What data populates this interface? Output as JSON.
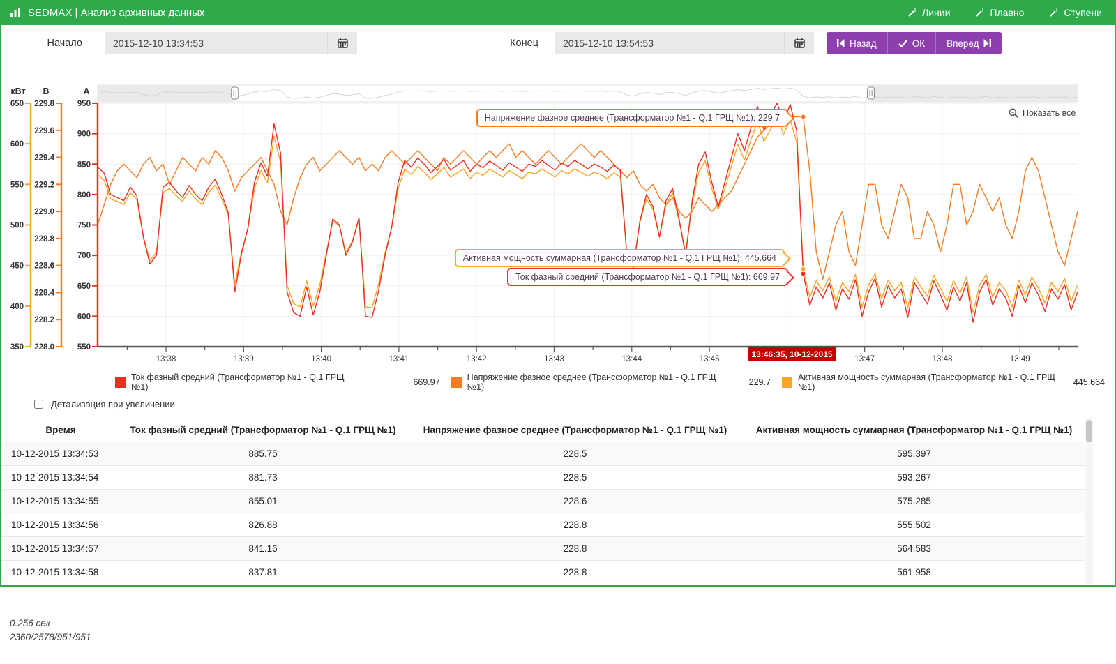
{
  "header": {
    "title": "SEDMAX | Анализ архивных данных",
    "links": [
      {
        "label": "Линии"
      },
      {
        "label": "Плавно"
      },
      {
        "label": "Ступени"
      }
    ]
  },
  "controls": {
    "start_label": "Начало",
    "start_value": "2015-12-10 13:34:53",
    "end_label": "Конец",
    "end_value": "2015-12-10 13:54:53",
    "back": "Назад",
    "ok": "ОК",
    "forward": "Вперед"
  },
  "chart_data": {
    "type": "line",
    "show_all_label": "Показать всё",
    "x_ticks": [
      "13:38",
      "13:39",
      "13:40",
      "13:41",
      "13:42",
      "13:43",
      "13:44",
      "13:45",
      "13:46",
      "13:47",
      "13:48",
      "13:49"
    ],
    "cursor": {
      "label": "13:46:35, 10-12-2015",
      "index": 108
    },
    "axes": [
      {
        "unit": "кВт",
        "color": "#f5a623",
        "min": 350,
        "max": 650,
        "step": 50,
        "decimals": 0
      },
      {
        "unit": "В",
        "color": "#f57b20",
        "min": 228.0,
        "max": 229.8,
        "step": 0.2,
        "decimals": 1
      },
      {
        "unit": "А",
        "color": "#e92f22",
        "min": 550,
        "max": 950,
        "step": 50,
        "decimals": 0
      }
    ],
    "navigator": {
      "handle_fractions": [
        0.14,
        0.789
      ]
    },
    "series": [
      {
        "name": "Ток фазный средний (Трансформатор №1 - Q.1 ГРЩ №1)",
        "axis": "А",
        "color": "#e92f22",
        "cursor_value": 669.97,
        "values": [
          845,
          835,
          800,
          795,
          790,
          812,
          798,
          730,
          686,
          700,
          812,
          820,
          806,
          795,
          815,
          800,
          790,
          812,
          825,
          800,
          770,
          640,
          702,
          745,
          820,
          852,
          830,
          916,
          868,
          640,
          606,
          600,
          648,
          602,
          640,
          700,
          760,
          750,
          700,
          722,
          762,
          600,
          598,
          642,
          700,
          746,
          820,
          856,
          845,
          860,
          850,
          836,
          846,
          858,
          840,
          848,
          856,
          838,
          850,
          844,
          855,
          848,
          840,
          852,
          845,
          838,
          850,
          846,
          856,
          848,
          840,
          852,
          846,
          856,
          850,
          842,
          850,
          845,
          838,
          848,
          840,
          700,
          680,
          756,
          800,
          780,
          730,
          790,
          810,
          760,
          700,
          790,
          850,
          870,
          820,
          780,
          820,
          860,
          900,
          872,
          910,
          945,
          906,
          930,
          950,
          920,
          948,
          905,
          670,
          618,
          648,
          630,
          655,
          610,
          645,
          628,
          660,
          600,
          640,
          662,
          615,
          650,
          630,
          645,
          598,
          655,
          638,
          620,
          658,
          635,
          610,
          648,
          625,
          655,
          590,
          640,
          660,
          618,
          645,
          630,
          600,
          650,
          622,
          655,
          635,
          608,
          645,
          628,
          652,
          610,
          640
        ]
      },
      {
        "name": "Напряжение фазное среднее (Трансформатор №1 - Q.1 ГРЩ №1)",
        "axis": "В",
        "color": "#f57b20",
        "cursor_value": 229.7,
        "values": [
          228.9,
          229.05,
          229.2,
          229.3,
          229.35,
          229.3,
          229.25,
          229.35,
          229.4,
          229.3,
          229.35,
          229.2,
          229.3,
          229.4,
          229.35,
          229.3,
          229.4,
          229.35,
          229.45,
          229.4,
          229.3,
          229.15,
          229.25,
          229.3,
          229.35,
          229.4,
          229.3,
          229.2,
          229.0,
          228.9,
          229.1,
          229.25,
          229.35,
          229.4,
          229.3,
          229.35,
          229.4,
          229.45,
          229.4,
          229.35,
          229.4,
          229.3,
          229.35,
          229.3,
          229.4,
          229.45,
          229.4,
          229.35,
          229.4,
          229.45,
          229.4,
          229.35,
          229.3,
          229.4,
          229.35,
          229.4,
          229.45,
          229.4,
          229.35,
          229.4,
          229.45,
          229.4,
          229.45,
          229.5,
          229.4,
          229.45,
          229.4,
          229.35,
          229.4,
          229.45,
          229.4,
          229.35,
          229.4,
          229.45,
          229.5,
          229.45,
          229.4,
          229.45,
          229.4,
          229.35,
          229.3,
          229.25,
          229.3,
          229.2,
          229.15,
          229.2,
          229.1,
          229.05,
          229.1,
          229.0,
          228.95,
          229.0,
          229.1,
          229.05,
          229.0,
          229.05,
          229.1,
          229.15,
          229.25,
          229.35,
          229.45,
          229.55,
          229.6,
          229.65,
          229.7,
          229.75,
          229.7,
          229.7,
          229.7,
          229.3,
          228.7,
          228.5,
          228.7,
          228.9,
          229.0,
          228.7,
          228.6,
          228.9,
          229.2,
          229.2,
          228.9,
          228.8,
          229.0,
          229.2,
          229.1,
          228.8,
          228.8,
          229.0,
          228.9,
          228.7,
          228.9,
          229.2,
          229.2,
          228.9,
          229.0,
          229.2,
          229.1,
          229.0,
          229.1,
          228.9,
          228.8,
          229.0,
          229.3,
          229.4,
          229.3,
          229.1,
          228.9,
          228.7,
          228.6,
          228.8,
          229.0
        ]
      },
      {
        "name": "Активная мощность суммарная (Трансформатор №1 - Q.1 ГРЩ №1)",
        "axis": "кВт",
        "color": "#f5a623",
        "cursor_value": 445.664,
        "values": [
          562,
          555,
          532,
          529,
          525,
          540,
          531,
          485,
          456,
          466,
          540,
          545,
          536,
          529,
          542,
          532,
          525,
          540,
          549,
          532,
          512,
          426,
          467,
          495,
          545,
          567,
          552,
          609,
          577,
          426,
          403,
          399,
          431,
          400,
          426,
          466,
          505,
          499,
          466,
          480,
          507,
          399,
          398,
          427,
          466,
          496,
          545,
          569,
          562,
          572,
          565,
          556,
          563,
          571,
          559,
          564,
          569,
          557,
          565,
          561,
          569,
          564,
          559,
          567,
          562,
          557,
          565,
          563,
          569,
          564,
          559,
          567,
          563,
          569,
          565,
          560,
          565,
          562,
          557,
          564,
          559,
          466,
          452,
          503,
          532,
          519,
          485,
          525,
          539,
          505,
          466,
          525,
          565,
          579,
          545,
          519,
          545,
          572,
          599,
          580,
          605,
          628,
          603,
          618,
          632,
          612,
          630,
          602,
          445.664,
          411,
          431,
          419,
          436,
          406,
          429,
          418,
          439,
          399,
          426,
          440,
          409,
          432,
          419,
          429,
          398,
          436,
          424,
          412,
          438,
          422,
          406,
          431,
          416,
          436,
          392,
          426,
          439,
          411,
          429,
          419,
          399,
          432,
          414,
          436,
          422,
          404,
          429,
          418,
          434,
          406,
          426
        ]
      }
    ],
    "tooltips": [
      {
        "text": "Напряжение фазное среднее (Трансформатор №1 - Q.1 ГРЩ №1): 229.7",
        "color": "#f57b20"
      },
      {
        "text": "Активная мощность суммарная (Трансформатор №1 - Q.1 ГРЩ №1): 445.664",
        "color": "#f5a623"
      },
      {
        "text": "Ток фазный средний (Трансформатор №1 - Q.1 ГРЩ №1): 669.97",
        "color": "#e92f22"
      }
    ]
  },
  "legend": {
    "items": [
      {
        "label": "Ток фазный средний (Трансформатор №1 - Q.1 ГРЩ №1)",
        "value": "669.97",
        "color": "#e92f22"
      },
      {
        "label": "Напряжение фазное среднее (Трансформатор №1 - Q.1 ГРЩ №1)",
        "value": "229.7",
        "color": "#f57b20"
      },
      {
        "label": "Активная мощность суммарная (Трансформатор №1 - Q.1 ГРЩ №1)",
        "value": "445.664",
        "color": "#f5a623"
      }
    ]
  },
  "detail": {
    "label": "Детализация при увеличении",
    "checked": false
  },
  "table": {
    "columns": [
      "Время",
      "Ток фазный средний (Трансформатор №1 - Q.1 ГРЩ №1)",
      "Напряжение фазное среднее (Трансформатор №1 - Q.1 ГРЩ №1)",
      "Активная мощность суммарная (Трансформатор №1 - Q.1 ГРЩ №1)"
    ],
    "rows": [
      [
        "10-12-2015 13:34:53",
        "885.75",
        "228.5",
        "595.397"
      ],
      [
        "10-12-2015 13:34:54",
        "881.73",
        "228.5",
        "593.267"
      ],
      [
        "10-12-2015 13:34:55",
        "855.01",
        "228.6",
        "575.285"
      ],
      [
        "10-12-2015 13:34:56",
        "826.88",
        "228.8",
        "555.502"
      ],
      [
        "10-12-2015 13:34:57",
        "841.16",
        "228.8",
        "564.583"
      ],
      [
        "10-12-2015 13:34:58",
        "837.81",
        "228.8",
        "561.958"
      ]
    ]
  },
  "footer": {
    "time": "0.256 сек",
    "counts": "2360/2578/951/951"
  },
  "colors": {
    "brand_green": "#2eaa4b",
    "button_purple": "#8e3fae",
    "cursor_red": "#c40000"
  }
}
